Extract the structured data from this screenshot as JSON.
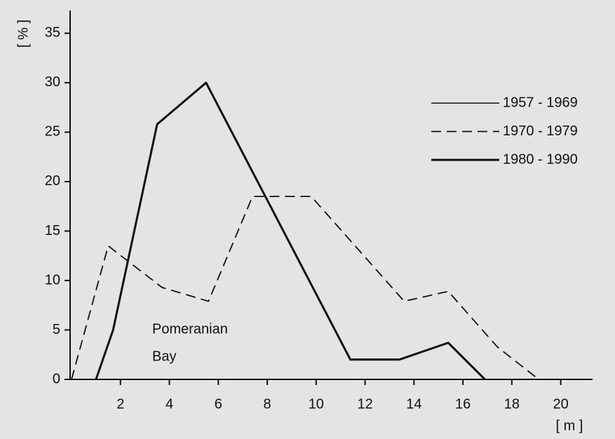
{
  "chart_data": {
    "type": "line",
    "ylabel": "[ % ]",
    "xlabel": "[ m ]",
    "annotation": [
      "Pomeranian",
      "Bay"
    ],
    "xlim": [
      0,
      21.3
    ],
    "ylim": [
      0,
      37.3
    ],
    "xticks": [
      2,
      4,
      6,
      8,
      10,
      12,
      14,
      16,
      18,
      20
    ],
    "yticks": [
      0,
      5,
      10,
      15,
      20,
      25,
      30,
      35
    ],
    "color": "#111111",
    "series": [
      {
        "name": "1957 - 1969",
        "style": "solid",
        "width": 1.5,
        "x": [],
        "values": []
      },
      {
        "name": "1970 - 1979",
        "style": "dashed",
        "width": 1.8,
        "x": [
          0,
          1.5,
          3.7,
          5.6,
          7.4,
          9.8,
          13.6,
          15.4,
          17.4,
          19.1
        ],
        "values": [
          0,
          13.5,
          9.3,
          7.9,
          18.5,
          18.5,
          7.9,
          8.9,
          3.3,
          0
        ]
      },
      {
        "name": "1980 - 1990",
        "style": "solid",
        "width": 3,
        "x": [
          1,
          1.7,
          3.5,
          5.5,
          11.4,
          13.4,
          15.4,
          16.9
        ],
        "values": [
          0,
          5,
          25.8,
          30,
          2,
          2,
          3.7,
          0
        ]
      }
    ]
  }
}
